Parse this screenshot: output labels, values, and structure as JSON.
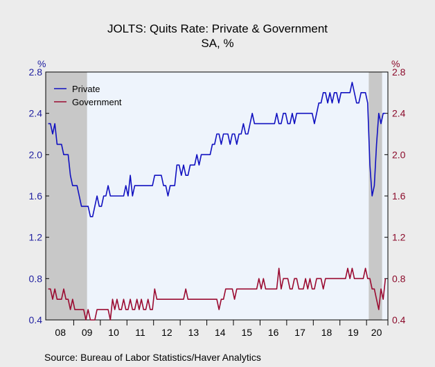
{
  "title": "JOLTS: Quits Rate: Private & Government",
  "subtitle": "SA, %",
  "source": "Source:  Bureau of Labor Statistics/Haver Analytics",
  "left_axis_unit": "%",
  "right_axis_unit": "%",
  "colors": {
    "private": "#1010c0",
    "government": "#9a0a30",
    "recession": "#c8c8c8",
    "plot_bg": "#eef4fc",
    "left_axis": "#2020a0",
    "right_axis": "#8b0a2a"
  },
  "chart_data": {
    "type": "line",
    "x_start": "2008-01",
    "frequency": "monthly",
    "x_tick_labels": [
      "08",
      "09",
      "10",
      "11",
      "12",
      "13",
      "14",
      "15",
      "16",
      "17",
      "18",
      "19",
      "20"
    ],
    "ylim": [
      0.4,
      2.8
    ],
    "y_ticks": [
      "0.4",
      "0.8",
      "1.2",
      "1.6",
      "2.0",
      "2.4",
      "2.8"
    ],
    "y_right_ticks": [
      "0.4",
      "0.8",
      "1.2",
      "1.6",
      "2.0",
      "2.4",
      "2.8"
    ],
    "legend": "top-left",
    "recession_bands": [
      [
        "2008-01",
        "2009-06"
      ],
      [
        "2020-02",
        "2020-07"
      ]
    ],
    "series": [
      {
        "name": "Private",
        "values": [
          2.3,
          2.3,
          2.2,
          2.3,
          2.1,
          2.1,
          2.1,
          2.0,
          2.0,
          2.0,
          1.8,
          1.7,
          1.7,
          1.7,
          1.6,
          1.5,
          1.5,
          1.5,
          1.5,
          1.4,
          1.4,
          1.5,
          1.6,
          1.5,
          1.5,
          1.6,
          1.6,
          1.7,
          1.6,
          1.6,
          1.6,
          1.6,
          1.6,
          1.6,
          1.6,
          1.7,
          1.6,
          1.8,
          1.6,
          1.7,
          1.7,
          1.7,
          1.7,
          1.7,
          1.7,
          1.7,
          1.7,
          1.7,
          1.8,
          1.8,
          1.8,
          1.8,
          1.7,
          1.7,
          1.6,
          1.7,
          1.7,
          1.7,
          1.9,
          1.9,
          1.8,
          1.9,
          1.8,
          1.8,
          1.9,
          1.9,
          1.9,
          2.0,
          1.9,
          2.0,
          2.0,
          2.0,
          2.0,
          2.0,
          2.1,
          2.1,
          2.2,
          2.2,
          2.1,
          2.2,
          2.2,
          2.2,
          2.1,
          2.2,
          2.2,
          2.1,
          2.2,
          2.2,
          2.3,
          2.2,
          2.2,
          2.3,
          2.4,
          2.3,
          2.3,
          2.3,
          2.3,
          2.3,
          2.3,
          2.3,
          2.3,
          2.3,
          2.3,
          2.4,
          2.3,
          2.3,
          2.4,
          2.4,
          2.3,
          2.3,
          2.4,
          2.3,
          2.4,
          2.4,
          2.4,
          2.4,
          2.4,
          2.4,
          2.4,
          2.4,
          2.3,
          2.4,
          2.5,
          2.5,
          2.6,
          2.6,
          2.5,
          2.6,
          2.5,
          2.6,
          2.6,
          2.5,
          2.6,
          2.6,
          2.6,
          2.6,
          2.6,
          2.7,
          2.6,
          2.5,
          2.5,
          2.6,
          2.6,
          2.6,
          2.5,
          1.9,
          1.6,
          1.7,
          2.1,
          2.4,
          2.3,
          2.4,
          2.4
        ]
      },
      {
        "name": "Government",
        "values": [
          0.7,
          0.7,
          0.6,
          0.7,
          0.6,
          0.6,
          0.6,
          0.7,
          0.6,
          0.6,
          0.5,
          0.6,
          0.5,
          0.5,
          0.5,
          0.5,
          0.5,
          0.4,
          0.5,
          0.4,
          0.4,
          0.4,
          0.5,
          0.5,
          0.5,
          0.5,
          0.5,
          0.5,
          0.4,
          0.6,
          0.5,
          0.6,
          0.5,
          0.5,
          0.6,
          0.5,
          0.5,
          0.6,
          0.5,
          0.5,
          0.6,
          0.5,
          0.6,
          0.5,
          0.5,
          0.6,
          0.5,
          0.5,
          0.7,
          0.6,
          0.6,
          0.6,
          0.6,
          0.6,
          0.6,
          0.6,
          0.6,
          0.6,
          0.6,
          0.6,
          0.6,
          0.6,
          0.7,
          0.6,
          0.6,
          0.6,
          0.6,
          0.6,
          0.6,
          0.6,
          0.6,
          0.6,
          0.6,
          0.6,
          0.6,
          0.6,
          0.6,
          0.5,
          0.6,
          0.6,
          0.7,
          0.7,
          0.7,
          0.7,
          0.6,
          0.7,
          0.7,
          0.7,
          0.7,
          0.7,
          0.7,
          0.7,
          0.7,
          0.7,
          0.7,
          0.8,
          0.7,
          0.8,
          0.7,
          0.7,
          0.7,
          0.7,
          0.7,
          0.7,
          0.9,
          0.7,
          0.8,
          0.8,
          0.8,
          0.7,
          0.7,
          0.8,
          0.8,
          0.7,
          0.7,
          0.7,
          0.8,
          0.7,
          0.8,
          0.7,
          0.7,
          0.8,
          0.8,
          0.8,
          0.7,
          0.8,
          0.8,
          0.8,
          0.8,
          0.8,
          0.8,
          0.8,
          0.8,
          0.8,
          0.8,
          0.9,
          0.8,
          0.9,
          0.8,
          0.8,
          0.8,
          0.8,
          0.8,
          0.9,
          0.8,
          0.8,
          0.7,
          0.7,
          0.6,
          0.5,
          0.7,
          0.6,
          0.8
        ]
      }
    ]
  }
}
